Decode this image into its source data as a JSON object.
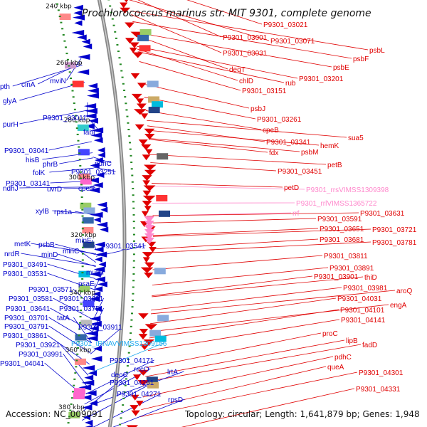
{
  "title": "Prochlorococcus marinus str. MIT 9301, complete genome",
  "accession": "Accession: NC_009091",
  "topology": "Topology: circular; Length: 1,641,879 bp; Genes: 1,948",
  "colors": {
    "forward": "#e00000",
    "reverse": "#0000cc",
    "rna": "#ff88cc",
    "trna": "#22aaee",
    "backbone": "#888888",
    "tick": "#228822"
  },
  "scale_labels": [
    {
      "label": "240 kbp",
      "kbp": 240
    },
    {
      "label": "260 kbp",
      "kbp": 260
    },
    {
      "label": "280 kbp",
      "kbp": 280
    },
    {
      "label": "300 kbp",
      "kbp": 300
    },
    {
      "label": "320 kbp",
      "kbp": 320
    },
    {
      "label": "340 kbp",
      "kbp": 340
    },
    {
      "label": "360 kbp",
      "kbp": 360
    },
    {
      "label": "380 kbp",
      "kbp": 380
    }
  ],
  "right_labels": [
    {
      "text": "P9301_03021",
      "kind": "fwd"
    },
    {
      "text": "P9301_03001",
      "kind": "fwd"
    },
    {
      "text": "P9301_03071",
      "kind": "fwd"
    },
    {
      "text": "psbL",
      "kind": "fwd"
    },
    {
      "text": "psbF",
      "kind": "fwd"
    },
    {
      "text": "P9301_03031",
      "kind": "fwd"
    },
    {
      "text": "psbE",
      "kind": "fwd"
    },
    {
      "text": "degT",
      "kind": "fwd"
    },
    {
      "text": "P9301_03201",
      "kind": "fwd"
    },
    {
      "text": "chlD",
      "kind": "fwd"
    },
    {
      "text": "rub",
      "kind": "fwd"
    },
    {
      "text": "P9301_03151",
      "kind": "fwd"
    },
    {
      "text": "psbJ",
      "kind": "fwd"
    },
    {
      "text": "P9301_03261",
      "kind": "fwd"
    },
    {
      "text": "cpeB",
      "kind": "fwd"
    },
    {
      "text": "sua5",
      "kind": "fwd"
    },
    {
      "text": "P9301_03341",
      "kind": "fwd"
    },
    {
      "text": "hemK",
      "kind": "fwd"
    },
    {
      "text": "fdx",
      "kind": "fwd"
    },
    {
      "text": "psbM",
      "kind": "fwd"
    },
    {
      "text": "petB",
      "kind": "fwd"
    },
    {
      "text": "P9301_03451",
      "kind": "fwd"
    },
    {
      "text": "petD",
      "kind": "fwd"
    },
    {
      "text": "P9301_rrsVIMSS1309398",
      "kind": "rna"
    },
    {
      "text": "P9301_rrlVIMSS1365722",
      "kind": "rna"
    },
    {
      "text": "rrf",
      "kind": "rna"
    },
    {
      "text": "P9301_03631",
      "kind": "fwd"
    },
    {
      "text": "P9301_03591",
      "kind": "fwd"
    },
    {
      "text": "P9301_03721",
      "kind": "fwd"
    },
    {
      "text": "P9301_03651",
      "kind": "fwd"
    },
    {
      "text": "P9301_03681",
      "kind": "fwd"
    },
    {
      "text": "P9301_03781",
      "kind": "fwd"
    },
    {
      "text": "P9301_03811",
      "kind": "fwd"
    },
    {
      "text": "P9301_03891",
      "kind": "fwd"
    },
    {
      "text": "thiD",
      "kind": "fwd"
    },
    {
      "text": "P9301_03901",
      "kind": "fwd"
    },
    {
      "text": "P9301_03981",
      "kind": "fwd"
    },
    {
      "text": "aroQ",
      "kind": "fwd"
    },
    {
      "text": "P9301_04031",
      "kind": "fwd"
    },
    {
      "text": "engA",
      "kind": "fwd"
    },
    {
      "text": "P9301_04101",
      "kind": "fwd"
    },
    {
      "text": "P9301_04141",
      "kind": "fwd"
    },
    {
      "text": "proC",
      "kind": "fwd"
    },
    {
      "text": "lipB",
      "kind": "fwd"
    },
    {
      "text": "fadD",
      "kind": "fwd"
    },
    {
      "text": "pdhC",
      "kind": "fwd"
    },
    {
      "text": "queA",
      "kind": "fwd"
    },
    {
      "text": "P9301_04301",
      "kind": "fwd"
    },
    {
      "text": "P9301_04331",
      "kind": "fwd"
    }
  ],
  "left_labels": [
    {
      "text": "cinA",
      "kind": "rev"
    },
    {
      "text": "mviN",
      "kind": "rev"
    },
    {
      "text": "pth",
      "kind": "rev"
    },
    {
      "text": "glyA",
      "kind": "rev"
    },
    {
      "text": "P9301_03011",
      "kind": "rev"
    },
    {
      "text": "purH",
      "kind": "rev"
    },
    {
      "text": "fabI",
      "kind": "rev"
    },
    {
      "text": "P9301_03041",
      "kind": "rev"
    },
    {
      "text": "hisB",
      "kind": "rev"
    },
    {
      "text": "phrB",
      "kind": "rev"
    },
    {
      "text": "ndhC",
      "kind": "rev"
    },
    {
      "text": "folK",
      "kind": "rev"
    },
    {
      "text": "P9301_03251",
      "kind": "rev"
    },
    {
      "text": "P9301_03141",
      "kind": "rev"
    },
    {
      "text": "ndhJ",
      "kind": "rev"
    },
    {
      "text": "uvrD",
      "kind": "rev"
    },
    {
      "text": "cpeS",
      "kind": "rev"
    },
    {
      "text": "xylB",
      "kind": "rev"
    },
    {
      "text": "rps1a",
      "kind": "rev"
    },
    {
      "text": "metK",
      "kind": "rev"
    },
    {
      "text": "psbB",
      "kind": "rev"
    },
    {
      "text": "minE",
      "kind": "rev"
    },
    {
      "text": "nrdR",
      "kind": "rev"
    },
    {
      "text": "minD",
      "kind": "rev"
    },
    {
      "text": "minC",
      "kind": "rev"
    },
    {
      "text": "P9301_03541",
      "kind": "rev"
    },
    {
      "text": "P9301_03491",
      "kind": "rev"
    },
    {
      "text": "P9301_03531",
      "kind": "rev"
    },
    {
      "text": "mutM",
      "kind": "rev"
    },
    {
      "text": "psaE",
      "kind": "rev"
    },
    {
      "text": "P9301_03571",
      "kind": "rev"
    },
    {
      "text": "P9301_03581",
      "kind": "rev"
    },
    {
      "text": "P9301_03691",
      "kind": "rev"
    },
    {
      "text": "P9301_03641",
      "kind": "rev"
    },
    {
      "text": "P9301_03751",
      "kind": "rev"
    },
    {
      "text": "P9301_03701",
      "kind": "rev"
    },
    {
      "text": "tatA",
      "kind": "rev"
    },
    {
      "text": "P9301_03791",
      "kind": "rev"
    },
    {
      "text": "P9301_03911",
      "kind": "rev"
    },
    {
      "text": "P9301_03861",
      "kind": "rev"
    },
    {
      "text": "P9301_tRNAVVIMSS1309156",
      "kind": "trna"
    },
    {
      "text": "P9301_03921",
      "kind": "rev"
    },
    {
      "text": "P9301_03991",
      "kind": "rev"
    },
    {
      "text": "P9301_04041",
      "kind": "rev"
    },
    {
      "text": "P9301_04171",
      "kind": "rev"
    },
    {
      "text": "recO",
      "kind": "rev"
    },
    {
      "text": "deoC",
      "kind": "rev"
    },
    {
      "text": "lrtA",
      "kind": "rev"
    },
    {
      "text": "P9301_04261",
      "kind": "rev"
    },
    {
      "text": "P9301_04271",
      "kind": "rev"
    },
    {
      "text": "rpsD",
      "kind": "rev"
    }
  ]
}
